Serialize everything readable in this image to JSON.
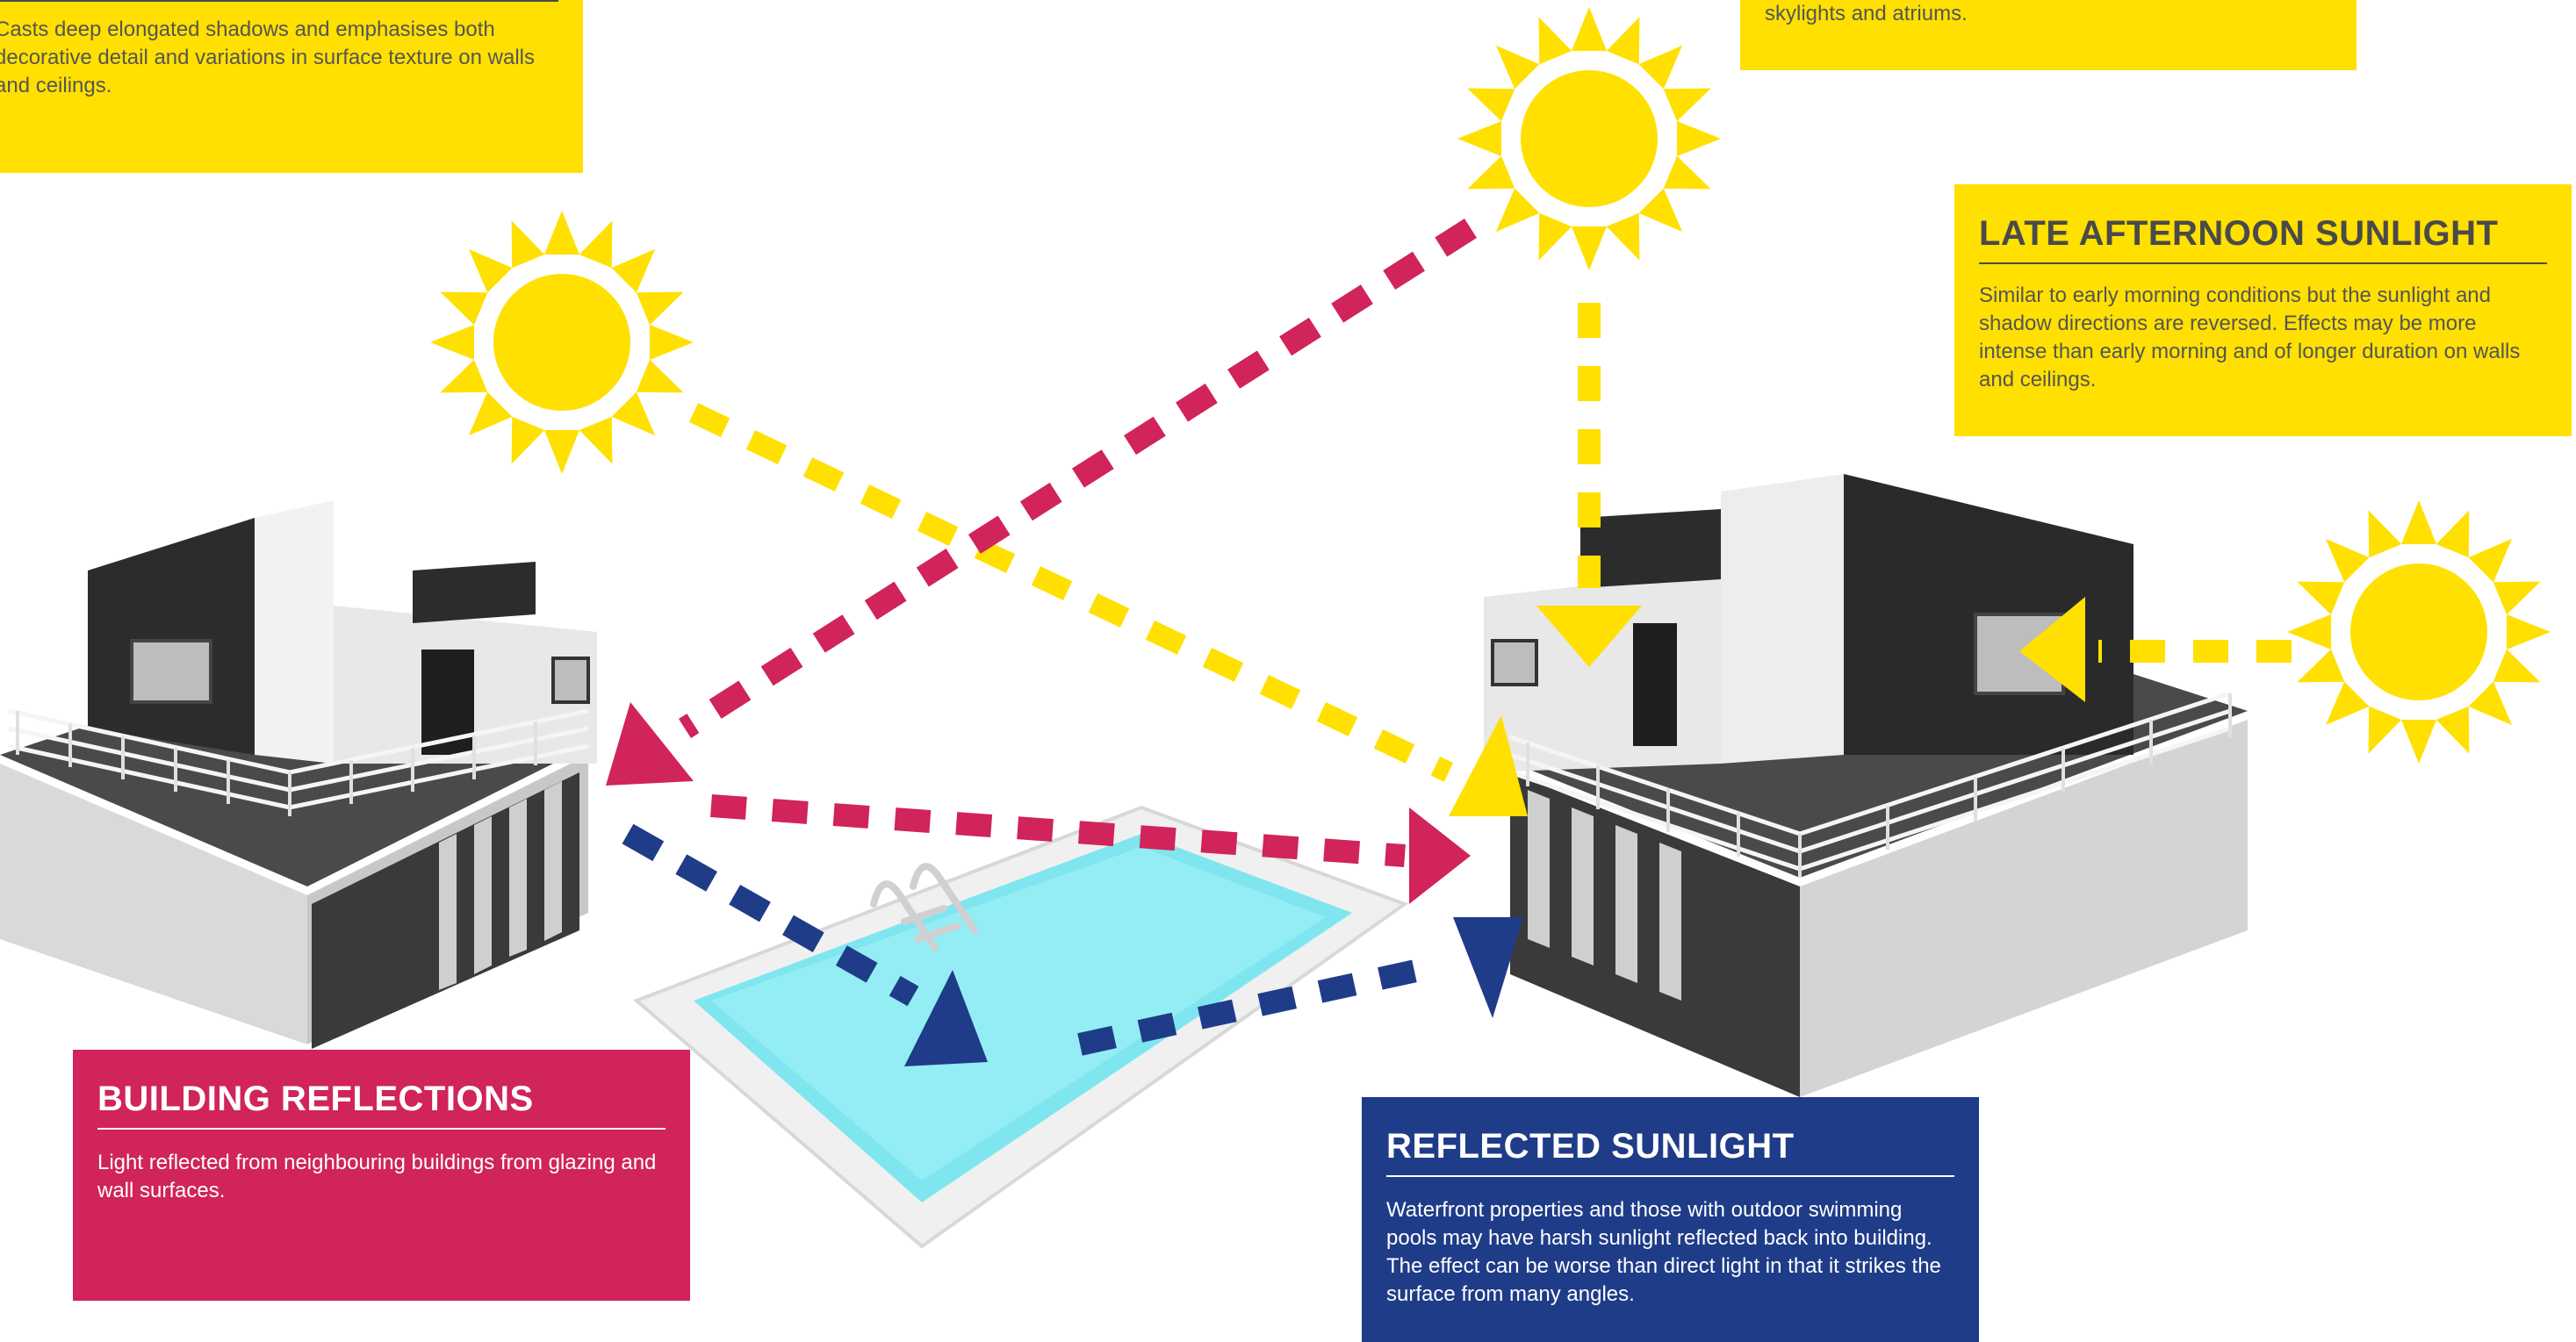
{
  "top_left": {
    "text": "Casts deep elongated shadows and emphasises both decorative detail and variations in surface texture on walls and ceilings."
  },
  "top_right": {
    "text": "skylights and atriums."
  },
  "late_afternoon": {
    "title": "LATE AFTERNOON SUNLIGHT",
    "text": "Similar to early morning conditions but the sunlight and shadow directions are reversed. Effects may be more intense than early morning and of longer duration on walls and ceilings."
  },
  "building_reflections": {
    "title": "BUILDING REFLECTIONS",
    "text": "Light reflected from neighbouring buildings from glazing and wall surfaces."
  },
  "reflected_sunlight": {
    "title": "REFLECTED SUNLIGHT",
    "text": "Waterfront properties and those with outdoor swimming pools may have harsh sunlight reflected back into building. The effect can be worse than direct light in that it strikes the surface from many angles."
  },
  "colors": {
    "sun_yellow": "#FFE000",
    "reflection_pink": "#D0245A",
    "reflected_blue": "#1F3C88",
    "pool_water": "#7FE6F0"
  }
}
